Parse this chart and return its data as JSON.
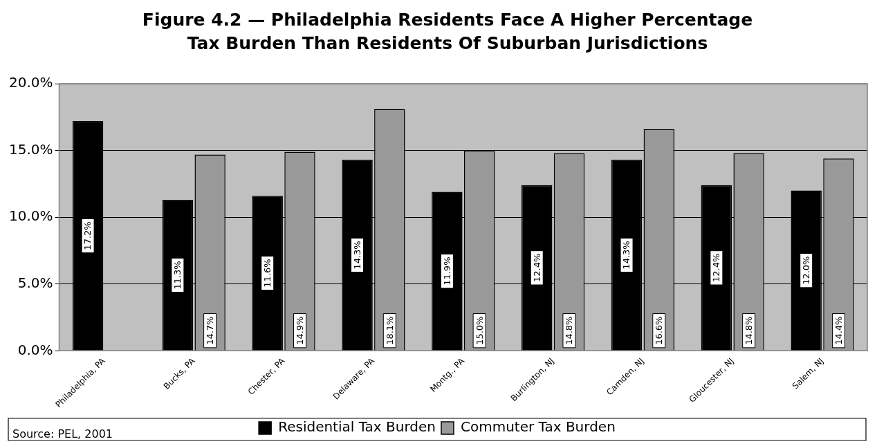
{
  "chart_data": {
    "type": "bar",
    "title": "Figure 4.2 — Philadelphia Residents Face A Higher Percentage Tax Burden Than Residents Of Suburban Jurisdictions",
    "categories": [
      "Philadelphia, PA",
      "Bucks, PA",
      "Chester, PA",
      "Delaware, PA",
      "Montg., PA",
      "Burlington, NJ",
      "Camden, NJ",
      "Gloucester, NJ",
      "Salem, NJ"
    ],
    "series": [
      {
        "name": "Residential Tax Burden",
        "color": "#000000",
        "values": [
          17.2,
          11.3,
          11.6,
          14.3,
          11.9,
          12.4,
          14.3,
          12.4,
          12.0
        ],
        "value_labels": [
          "17.2%",
          "11.3%",
          "11.6%",
          "14.3%",
          "11.9%",
          "12.4%",
          "14.3%",
          "12.4%",
          "12.0%"
        ]
      },
      {
        "name": "Commuter Tax Burden",
        "color": "#999999",
        "values": [
          null,
          14.7,
          14.9,
          18.1,
          15.0,
          14.8,
          16.6,
          14.8,
          14.4
        ],
        "value_labels": [
          null,
          "14.7%",
          "14.9%",
          "18.1%",
          "15.0%",
          "14.8%",
          "16.6%",
          "14.8%",
          "14.4%"
        ]
      }
    ],
    "ylim": [
      0,
      20
    ],
    "yticks": [
      {
        "value": 0,
        "label": "0.0%"
      },
      {
        "value": 5,
        "label": "5.0%"
      },
      {
        "value": 10,
        "label": "10.0%"
      },
      {
        "value": 15,
        "label": "15.0%"
      },
      {
        "value": 20,
        "label": "20.0%"
      }
    ],
    "grid": "y",
    "legend": "bottom",
    "annotations": [
      "Source: PEL, 2001"
    ]
  }
}
